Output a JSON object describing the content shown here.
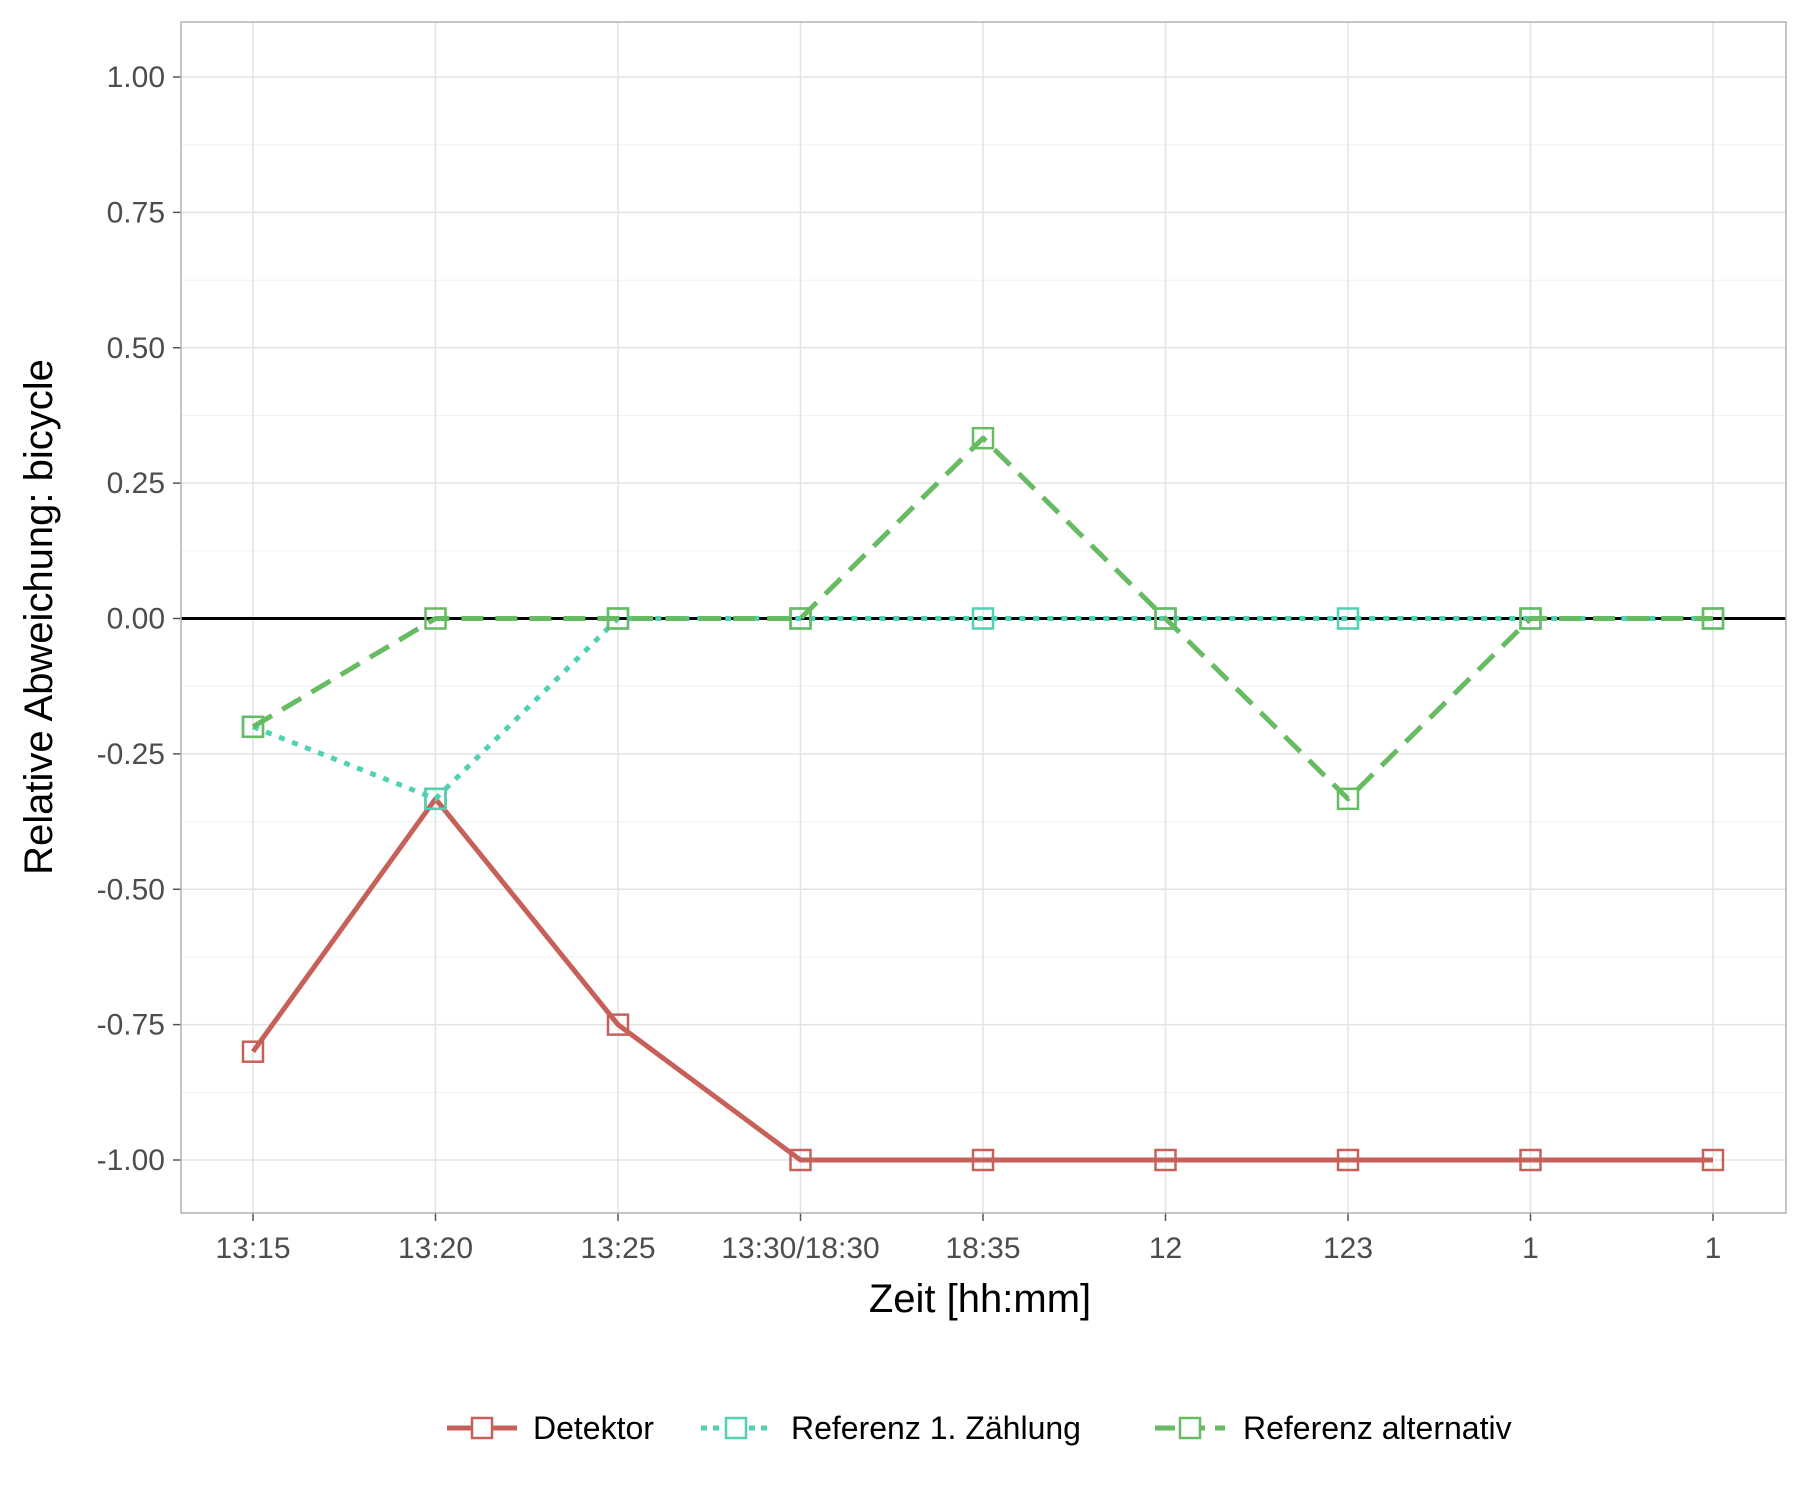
{
  "chart_data": {
    "type": "line",
    "title": "",
    "xlabel": "Zeit [hh:mm]",
    "ylabel": "Relative Abweichung: bicycle",
    "categories": [
      "13:15",
      "13:20",
      "13:25",
      "13:30/18:30",
      "18:35",
      "12",
      "123",
      "1",
      "1"
    ],
    "ylim": [
      -1.1,
      1.1
    ],
    "yticks": [
      "1.00",
      "0.75",
      "0.50",
      "0.25",
      "0.00",
      "-0.25",
      "-0.50",
      "-0.75",
      "-1.00"
    ],
    "ytick_values": [
      1.0,
      0.75,
      0.5,
      0.25,
      0.0,
      -0.25,
      -0.5,
      -0.75,
      -1.0
    ],
    "reference_line": 0,
    "grid": true,
    "legend_position": "bottom",
    "series": [
      {
        "name": "Detektor",
        "color": "#c8605a",
        "dash": "solid",
        "marker": "open-square",
        "values": [
          -0.8,
          -0.333,
          -0.75,
          -1.0,
          -1.0,
          -1.0,
          -1.0,
          -1.0,
          -1.0
        ]
      },
      {
        "name": "Referenz 1. Zählung",
        "color": "#4fd1b3",
        "dash": "dotted",
        "marker": "open-square",
        "values": [
          -0.2,
          -0.333,
          0.0,
          0.0,
          0.0,
          0.0,
          0.0,
          0.0,
          0.0
        ]
      },
      {
        "name": "Referenz alternativ",
        "color": "#66bb63",
        "dash": "dashed",
        "marker": "open-square",
        "values": [
          -0.2,
          0.0,
          0.0,
          0.0,
          0.333,
          0.0,
          -0.333,
          0.0,
          0.0
        ]
      }
    ]
  }
}
